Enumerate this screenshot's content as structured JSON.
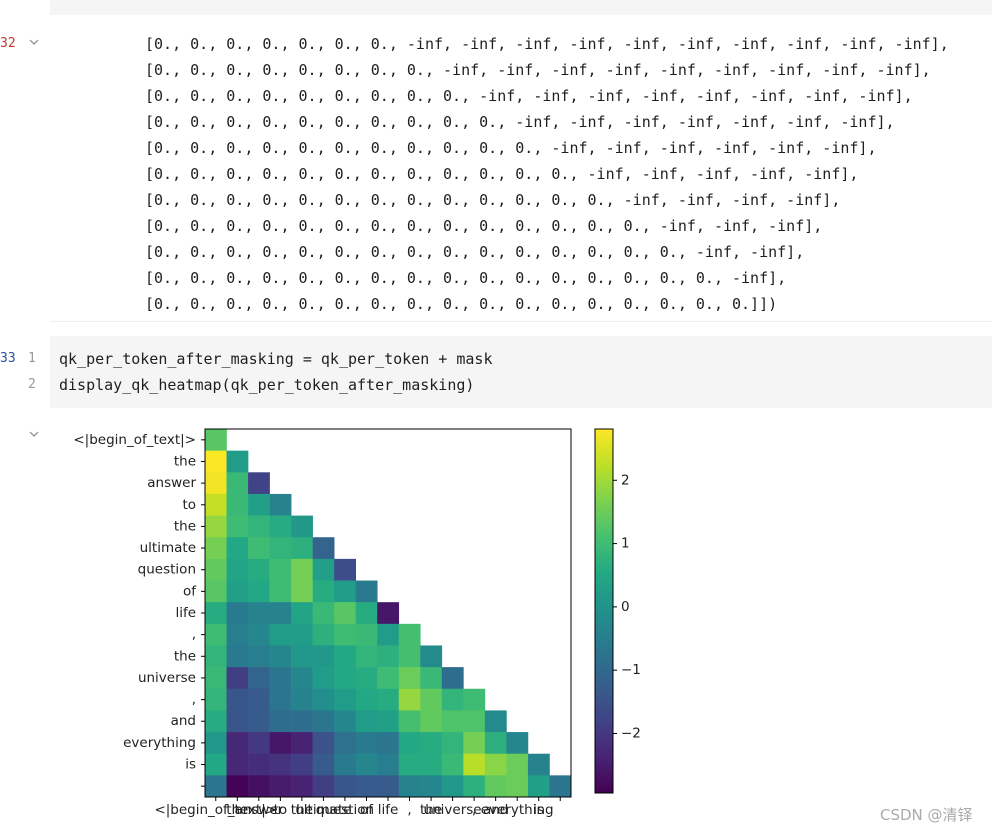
{
  "output_cell": {
    "prompt": 32,
    "lines": [
      "[0., 0., 0., 0., 0., 0., 0., -inf, -inf, -inf, -inf, -inf, -inf, -inf, -inf, -inf, -inf],",
      "[0., 0., 0., 0., 0., 0., 0., 0., -inf, -inf, -inf, -inf, -inf, -inf, -inf, -inf, -inf],",
      "[0., 0., 0., 0., 0., 0., 0., 0., 0., -inf, -inf, -inf, -inf, -inf, -inf, -inf, -inf],",
      "[0., 0., 0., 0., 0., 0., 0., 0., 0., 0., -inf, -inf, -inf, -inf, -inf, -inf, -inf],",
      "[0., 0., 0., 0., 0., 0., 0., 0., 0., 0., 0., -inf, -inf, -inf, -inf, -inf, -inf],",
      "[0., 0., 0., 0., 0., 0., 0., 0., 0., 0., 0., 0., -inf, -inf, -inf, -inf, -inf],",
      "[0., 0., 0., 0., 0., 0., 0., 0., 0., 0., 0., 0., 0., -inf, -inf, -inf, -inf],",
      "[0., 0., 0., 0., 0., 0., 0., 0., 0., 0., 0., 0., 0., 0., -inf, -inf, -inf],",
      "[0., 0., 0., 0., 0., 0., 0., 0., 0., 0., 0., 0., 0., 0., 0., -inf, -inf],",
      "[0., 0., 0., 0., 0., 0., 0., 0., 0., 0., 0., 0., 0., 0., 0., 0., -inf],",
      "[0., 0., 0., 0., 0., 0., 0., 0., 0., 0., 0., 0., 0., 0., 0., 0., 0.]])"
    ]
  },
  "code_cell": {
    "prompt": 33,
    "line_numbers": [
      1,
      2
    ],
    "lines": [
      "qk_per_token_after_masking = qk_per_token + mask",
      "display_qk_heatmap(qk_per_token_after_masking)"
    ]
  },
  "chart_data": {
    "type": "heatmap",
    "colormap": "viridis",
    "categories": [
      "<|begin_of_text|>",
      "the",
      "answer",
      "to",
      "the",
      "ultimate",
      "question",
      "of",
      "life",
      ",",
      "the",
      "universe",
      ",",
      "and",
      "everything",
      "is",
      null
    ],
    "values": [
      [
        1.3
      ],
      [
        2.8,
        0.2
      ],
      [
        2.7,
        0.9,
        -1.8
      ],
      [
        2.3,
        0.9,
        0.3,
        -0.4
      ],
      [
        1.9,
        1.0,
        0.8,
        0.6,
        0.1
      ],
      [
        1.6,
        0.5,
        1.0,
        0.8,
        0.7,
        -1.1
      ],
      [
        1.4,
        0.4,
        0.6,
        1.0,
        1.6,
        0.3,
        -1.6
      ],
      [
        1.3,
        0.3,
        0.5,
        1.0,
        1.6,
        0.6,
        0.2,
        -0.6
      ],
      [
        0.6,
        -0.6,
        -0.4,
        -0.4,
        0.4,
        0.9,
        1.3,
        0.6,
        -2.6
      ],
      [
        1.0,
        -0.5,
        -0.3,
        0.2,
        0.2,
        0.7,
        1.0,
        0.9,
        0.2,
        1.1
      ],
      [
        0.8,
        -0.6,
        -0.5,
        -0.3,
        0.1,
        0.1,
        0.5,
        0.8,
        0.7,
        1.1,
        -0.2
      ],
      [
        0.9,
        -1.9,
        -1.1,
        -0.7,
        -0.3,
        0.2,
        0.5,
        0.6,
        1.0,
        1.5,
        0.9,
        -0.9
      ],
      [
        0.8,
        -1.4,
        -1.3,
        -0.7,
        -0.4,
        -0.1,
        0.2,
        0.5,
        0.6,
        1.9,
        1.4,
        0.8,
        1.0
      ],
      [
        0.6,
        -1.4,
        -1.3,
        -0.9,
        -0.9,
        -0.7,
        -0.3,
        0.2,
        0.3,
        1.1,
        1.4,
        1.2,
        1.2,
        -0.2
      ],
      [
        0.1,
        -2.3,
        -2.0,
        -2.6,
        -2.4,
        -1.5,
        -0.8,
        -0.6,
        -0.7,
        0.5,
        0.6,
        0.8,
        1.6,
        0.7,
        -0.3
      ],
      [
        0.5,
        -2.3,
        -2.2,
        -2.1,
        -1.9,
        -1.3,
        -0.6,
        -0.3,
        -0.5,
        0.6,
        0.6,
        0.9,
        2.2,
        1.8,
        1.5,
        -0.4
      ],
      [
        -0.7,
        -2.9,
        -2.7,
        -2.5,
        -2.4,
        -1.9,
        -1.4,
        -1.3,
        -1.3,
        -0.4,
        -0.3,
        0.1,
        0.7,
        1.4,
        1.5,
        0.3,
        -0.7
      ]
    ],
    "clim": [
      -2.94,
      2.81
    ],
    "cticks": [
      {
        "value": -2,
        "label": "−2"
      },
      {
        "value": -1,
        "label": "−1"
      },
      0,
      1,
      2
    ]
  },
  "watermark": "CSDN @清铎"
}
